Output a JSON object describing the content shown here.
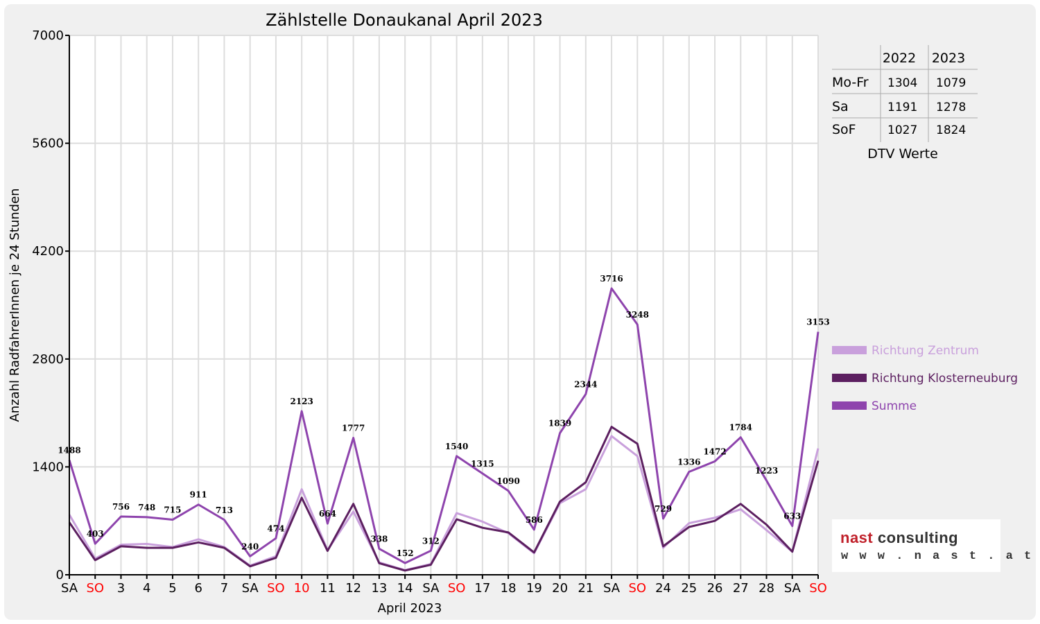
{
  "chart_data": {
    "type": "line",
    "title": "Zählstelle Donaukanal April 2023",
    "ylabel": "Anzahl RadfahrerInnen je 24 Stunden",
    "xlabel": "April 2023",
    "ylim": [
      0,
      7000
    ],
    "yticks": [
      "0",
      "1400",
      "2800",
      "4200",
      "5600",
      "7000"
    ],
    "ytick_values": [
      0,
      1400,
      2800,
      4200,
      5600,
      7000
    ],
    "grid": true,
    "legend_position": "right",
    "categories": [
      "SA",
      "SO",
      "3",
      "4",
      "5",
      "6",
      "7",
      "SA",
      "SO",
      "10",
      "11",
      "12",
      "13",
      "14",
      "SA",
      "SO",
      "17",
      "18",
      "19",
      "20",
      "21",
      "SA",
      "SO",
      "24",
      "25",
      "26",
      "27",
      "28",
      "SA",
      "SO"
    ],
    "category_colors": [
      "#000000",
      "#ff0000",
      "#000000",
      "#000000",
      "#000000",
      "#000000",
      "#000000",
      "#000000",
      "#ff0000",
      "#ff0000",
      "#000000",
      "#000000",
      "#000000",
      "#000000",
      "#000000",
      "#ff0000",
      "#000000",
      "#000000",
      "#000000",
      "#000000",
      "#000000",
      "#000000",
      "#ff0000",
      "#000000",
      "#000000",
      "#000000",
      "#000000",
      "#000000",
      "#000000",
      "#ff0000"
    ],
    "series": [
      {
        "name": "Richtung Zentrum",
        "color": "#c9a0dc",
        "values": [
          780,
          210,
          390,
          400,
          360,
          460,
          360,
          120,
          240,
          1110,
          320,
          820,
          160,
          60,
          140,
          800,
          690,
          540,
          280,
          930,
          1110,
          1800,
          1540,
          350,
          670,
          740,
          850,
          580,
          300,
          1640
        ]
      },
      {
        "name": "Richtung Klosterneuburg",
        "color": "#5c1f60",
        "values": [
          680,
          190,
          370,
          350,
          350,
          420,
          350,
          110,
          220,
          1000,
          310,
          920,
          150,
          55,
          130,
          720,
          610,
          550,
          290,
          950,
          1200,
          1920,
          1700,
          370,
          620,
          700,
          920,
          650,
          300,
          1480
        ]
      },
      {
        "name": "Summe",
        "color": "#8e44ad",
        "labels_visible": true,
        "values": [
          1488,
          403,
          756,
          748,
          715,
          911,
          713,
          240,
          474,
          2123,
          664,
          1777,
          338,
          152,
          312,
          1540,
          1315,
          1090,
          586,
          1839,
          2344,
          3716,
          3248,
          729,
          1336,
          1472,
          1784,
          1223,
          633,
          3153
        ]
      }
    ]
  },
  "dtv_table": {
    "caption": "DTV Werte",
    "headers": [
      "2022",
      "2023"
    ],
    "rows": [
      {
        "label": "Mo-Fr",
        "v2022": "1304",
        "v2023": "1079"
      },
      {
        "label": "Sa",
        "v2022": "1191",
        "v2023": "1278"
      },
      {
        "label": "SoF",
        "v2022": "1027",
        "v2023": "1824"
      }
    ]
  },
  "logo": {
    "name_red": "nast",
    "name_dark": "consulting",
    "url": "w w w . n a s t . a t"
  }
}
